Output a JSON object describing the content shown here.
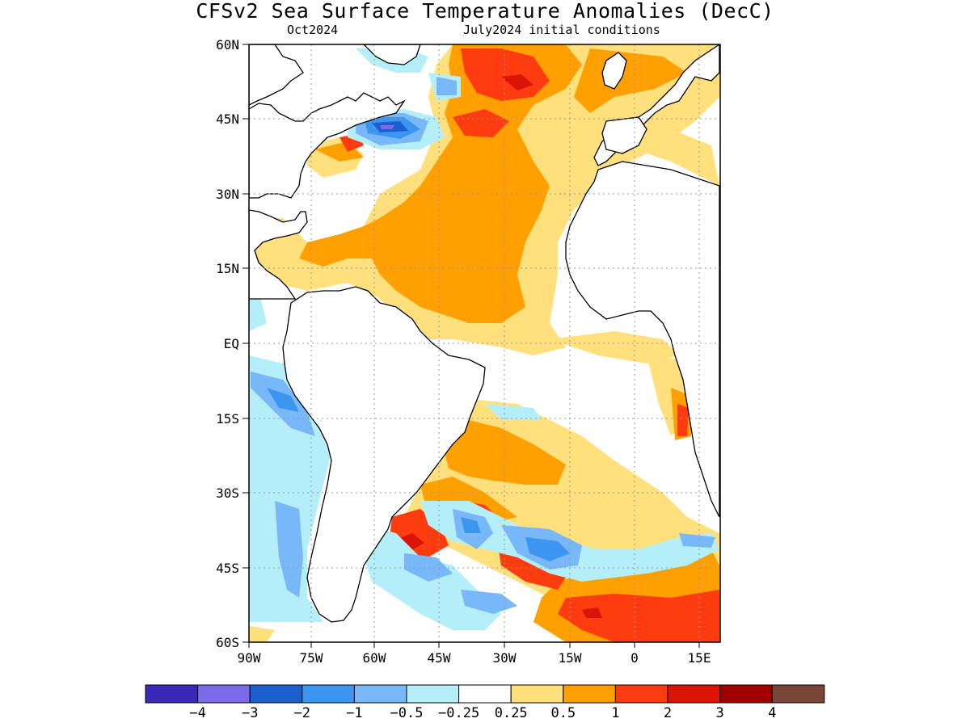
{
  "title": "CFSv2 Sea Surface Temperature Anomalies (DecC)",
  "subtitle_left": "Oct2024",
  "subtitle_right": "July2024 initial conditions",
  "axes": {
    "lat_labels": [
      "60N",
      "45N",
      "30N",
      "15N",
      "EQ",
      "15S",
      "30S",
      "45S",
      "60S"
    ],
    "lon_labels": [
      "90W",
      "75W",
      "60W",
      "45W",
      "30W",
      "15W",
      "0",
      "15E"
    ]
  },
  "colorbar": {
    "colors": [
      "#3a28b8",
      "#7c6ae8",
      "#1e5fd0",
      "#3c96f0",
      "#78b8f8",
      "#b4eef8",
      "#ffffff",
      "#ffe07c",
      "#ffa000",
      "#ff3c10",
      "#dc1405",
      "#a00000",
      "#784638"
    ],
    "labels": [
      "−4",
      "−3",
      "−2",
      "−1",
      "−0.5",
      "−0.25",
      "0.25",
      "0.5",
      "1",
      "2",
      "3",
      "4"
    ]
  },
  "colors": {
    "warm_weak": "#ffe07c",
    "warm_mod": "#ffa000",
    "warm_strong": "#ff3c10",
    "warm_extreme": "#dc1405",
    "cool_weak": "#b4eef8",
    "cool_mod": "#78b8f8",
    "cool_strong": "#3c96f0",
    "cool_extreme": "#1e5fd0",
    "coast": "#000000",
    "grid": "#999999"
  }
}
